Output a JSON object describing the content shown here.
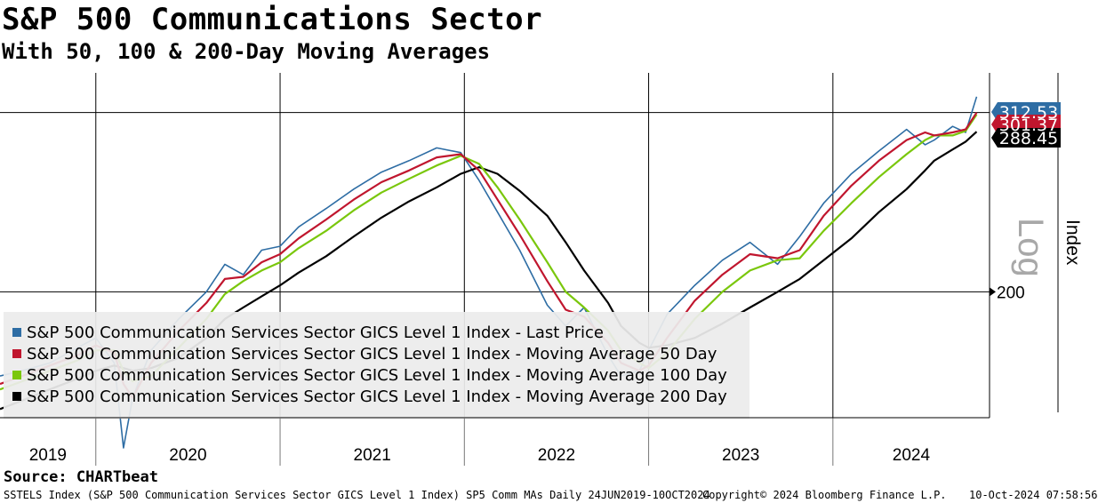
{
  "chart_data": {
    "type": "line",
    "title": "S&P 500 Communications Sector",
    "subtitle": "With 50, 100 & 200-Day Moving Averages",
    "ylabel": "Index",
    "scale_label": "Log",
    "ylim": [
      150,
      330
    ],
    "ytick": 200,
    "ytick_label": "200",
    "reference_level": 301.37,
    "x_years": [
      "2019",
      "2020",
      "2021",
      "2022",
      "2023",
      "2024"
    ],
    "x_range": [
      2019.48,
      2024.85
    ],
    "x": [
      2019.48,
      2019.6,
      2019.75,
      2019.9,
      2020.0,
      2020.1,
      2020.15,
      2020.2,
      2020.3,
      2020.45,
      2020.6,
      2020.7,
      2020.8,
      2020.9,
      2021.0,
      2021.1,
      2021.25,
      2021.4,
      2021.55,
      2021.7,
      2021.85,
      2021.98,
      2022.08,
      2022.18,
      2022.3,
      2022.45,
      2022.55,
      2022.65,
      2022.78,
      2022.85,
      2022.95,
      2023.0,
      2023.1,
      2023.25,
      2023.4,
      2023.55,
      2023.7,
      2023.82,
      2023.95,
      2024.1,
      2024.25,
      2024.4,
      2024.5,
      2024.55,
      2024.65,
      2024.72,
      2024.78
    ],
    "series": [
      {
        "name": "S&P 500 Communication Services Sector GICS Level 1 Index - Last Price",
        "color": "#2e6da4",
        "values": [
          165,
          167,
          170,
          176,
          180,
          170,
          140,
          157,
          175,
          188,
          200,
          213,
          208,
          220,
          222,
          232,
          242,
          253,
          263,
          270,
          278,
          275,
          258,
          240,
          220,
          194,
          185,
          193,
          173,
          165,
          167,
          175,
          190,
          203,
          215,
          224,
          213,
          227,
          245,
          262,
          276,
          290,
          280,
          283,
          292,
          288,
          312.53
        ]
      },
      {
        "name": "S&P 500 Communication Services Sector GICS Level 1 Index - Moving Average 50 Day",
        "color": "#c0162e",
        "values": [
          162,
          165,
          169,
          173,
          177,
          174,
          162,
          157,
          170,
          183,
          195,
          206,
          207,
          214,
          218,
          226,
          236,
          247,
          257,
          264,
          272,
          274,
          264,
          247,
          228,
          205,
          192,
          189,
          178,
          170,
          167,
          169,
          180,
          196,
          208,
          218,
          216,
          220,
          238,
          255,
          270,
          283,
          288,
          286,
          288,
          290,
          301.37
        ]
      },
      {
        "name": "S&P 500 Communication Services Sector GICS Level 1 Index - Moving Average 100 Day",
        "color": "#7ac70c",
        "values": [
          160,
          163,
          167,
          171,
          175,
          175,
          167,
          163,
          165,
          176,
          188,
          199,
          205,
          210,
          214,
          221,
          230,
          241,
          251,
          259,
          267,
          273,
          268,
          254,
          236,
          214,
          200,
          193,
          183,
          175,
          170,
          168,
          174,
          188,
          200,
          210,
          215,
          216,
          230,
          245,
          260,
          274,
          283,
          286,
          286,
          289,
          300
        ]
      },
      {
        "name": "S&P 500 Communication Services Sector GICS Level 1 Index - Moving Average 200 Day",
        "color": "#000000",
        "values": [
          153,
          156,
          160,
          164,
          167,
          169,
          168,
          167,
          168,
          172,
          180,
          188,
          193,
          198,
          203,
          209,
          217,
          227,
          237,
          246,
          254,
          262,
          266,
          262,
          252,
          238,
          224,
          210,
          195,
          185,
          178,
          176,
          177,
          180,
          186,
          193,
          200,
          206,
          215,
          226,
          240,
          253,
          264,
          270,
          277,
          282,
          288.45
        ]
      }
    ],
    "end_labels": [
      {
        "text": "312.53",
        "color": "#2e6da4"
      },
      {
        "text": "301.37",
        "color": "#c0162e"
      },
      {
        "text": "288.45",
        "color": "#000000"
      }
    ]
  },
  "source": "Source: CHARTbeat",
  "footer": {
    "left": "SSTELS Index (S&P 500 Communication Services Sector GICS Level 1 Index) SP5 Comm MAs  Daily 24JUN2019-10OCT2024",
    "copyright": "Copyright© 2024 Bloomberg Finance L.P.",
    "timestamp": "10-Oct-2024 07:58:56"
  }
}
